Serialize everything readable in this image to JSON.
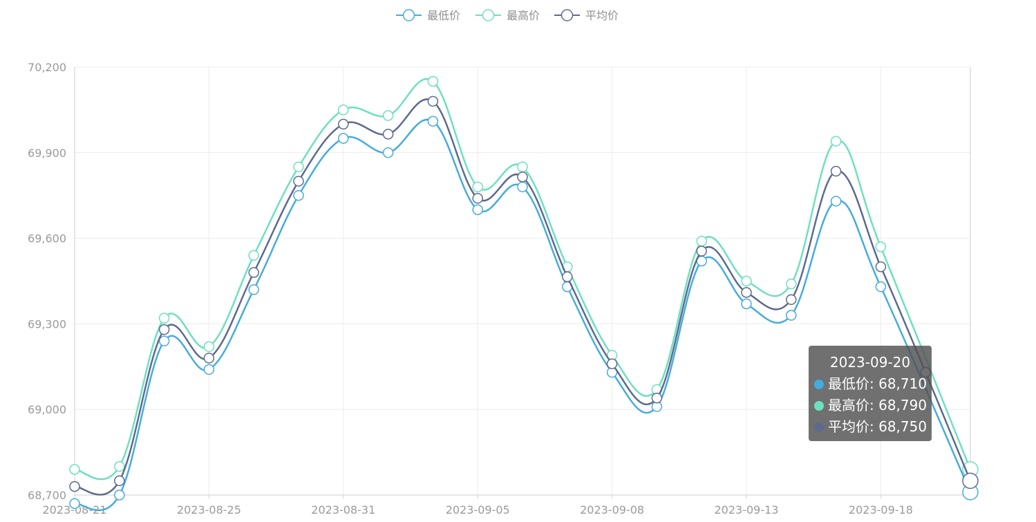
{
  "chart_data": {
    "type": "line",
    "smooth": true,
    "legend": {
      "placement": "top-center",
      "items": [
        "最低价",
        "最高价",
        "平均价"
      ]
    },
    "x": [
      "2023-08-21",
      "2023-08-22",
      "2023-08-23",
      "2023-08-25",
      "2023-08-28",
      "2023-08-29",
      "2023-08-31",
      "2023-09-01",
      "2023-09-04",
      "2023-09-05",
      "2023-09-06",
      "2023-09-07",
      "2023-09-08",
      "2023-09-11",
      "2023-09-12",
      "2023-09-13",
      "2023-09-14",
      "2023-09-15",
      "2023-09-18",
      "2023-09-19",
      "2023-09-20"
    ],
    "x_tick_labels": [
      "2023-08-21",
      "2023-08-25",
      "2023-08-31",
      "2023-09-05",
      "2023-09-08",
      "2023-09-13",
      "2023-09-18"
    ],
    "series": [
      {
        "name": "最低价",
        "color": "#45ABDE",
        "values": [
          68670,
          68700,
          69240,
          69140,
          69420,
          69750,
          69950,
          69900,
          70010,
          69700,
          69780,
          69430,
          69130,
          69010,
          69520,
          69370,
          69330,
          69730,
          69430,
          null,
          68710
        ]
      },
      {
        "name": "最高价",
        "color": "#6DE0BF",
        "values": [
          68790,
          68800,
          69320,
          69220,
          69540,
          69850,
          70050,
          70030,
          70150,
          69780,
          69850,
          69500,
          69190,
          69070,
          69590,
          69450,
          69440,
          69940,
          69570,
          null,
          68790
        ]
      },
      {
        "name": "平均价",
        "color": "#5D6A8E",
        "values": [
          68730,
          68750,
          69280,
          69180,
          69480,
          69800,
          70000,
          69965,
          70080,
          69740,
          69815,
          69465,
          69160,
          69040,
          69555,
          69410,
          69385,
          69835,
          69500,
          69130,
          68750
        ]
      }
    ],
    "y_ticks": [
      68700,
      69000,
      69300,
      69600,
      69900,
      70200
    ],
    "y_tick_labels": [
      "68,700",
      "69,000",
      "69,300",
      "69,600",
      "69,900",
      "70,200"
    ],
    "ylim": [
      68700,
      70200
    ],
    "grid": true
  },
  "tooltip": {
    "title": "2023-09-20",
    "rows": [
      {
        "label": "最低价: 68,710",
        "color": "#45ABDE"
      },
      {
        "label": "最高价: 68,790",
        "color": "#6DE0BF"
      },
      {
        "label": "平均价: 68,750",
        "color": "#5D6A8E"
      }
    ]
  }
}
